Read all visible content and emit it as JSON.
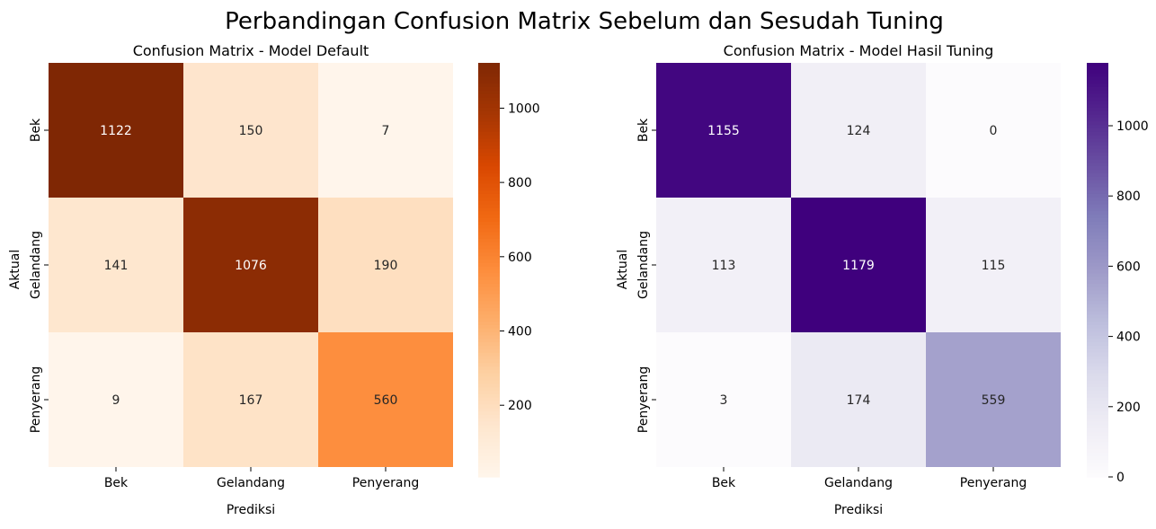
{
  "chart_data": [
    {
      "type": "heatmap",
      "title": "Confusion Matrix - Model Default",
      "xlabel": "Prediksi",
      "ylabel": "Aktual",
      "x_categories": [
        "Bek",
        "Gelandang",
        "Penyerang"
      ],
      "y_categories": [
        "Bek",
        "Gelandang",
        "Penyerang"
      ],
      "values": [
        [
          1122,
          150,
          7
        ],
        [
          141,
          1076,
          190
        ],
        [
          9,
          167,
          560
        ]
      ],
      "colormap": "Oranges",
      "colorbar_range": [
        7,
        1122
      ],
      "colorbar_ticks": [
        200,
        400,
        600,
        800,
        1000
      ]
    },
    {
      "type": "heatmap",
      "title": "Confusion Matrix - Model Hasil Tuning",
      "xlabel": "Prediksi",
      "ylabel": "Aktual",
      "x_categories": [
        "Bek",
        "Gelandang",
        "Penyerang"
      ],
      "y_categories": [
        "Bek",
        "Gelandang",
        "Penyerang"
      ],
      "values": [
        [
          1155,
          124,
          0
        ],
        [
          113,
          1179,
          115
        ],
        [
          3,
          174,
          559
        ]
      ],
      "colormap": "Purples",
      "colorbar_range": [
        0,
        1179
      ],
      "colorbar_ticks": [
        0,
        200,
        400,
        600,
        800,
        1000
      ]
    }
  ],
  "figure": {
    "suptitle": "Perbandingan Confusion Matrix Sebelum dan Sesudah Tuning"
  },
  "colormaps": {
    "Oranges": [
      "#fff5eb",
      "#fee6ce",
      "#fdd0a2",
      "#fdae6b",
      "#fd8d3c",
      "#f16913",
      "#d94801",
      "#a63603",
      "#7f2704"
    ],
    "Purples": [
      "#fcfbfd",
      "#efedf5",
      "#dadaeb",
      "#bcbddc",
      "#9e9ac8",
      "#807dba",
      "#6a51a3",
      "#54278f",
      "#3f007d"
    ]
  }
}
